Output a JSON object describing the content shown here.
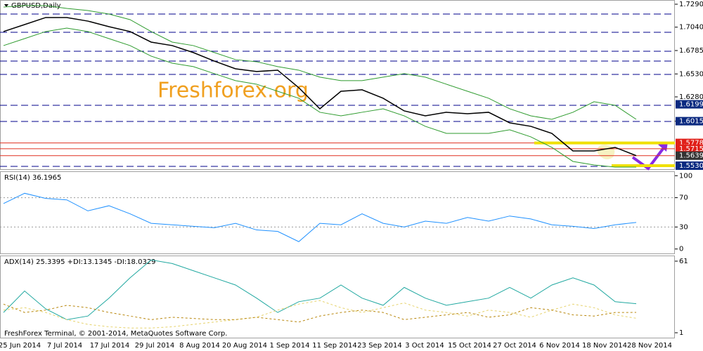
{
  "chart_data": [
    {
      "type": "line",
      "title": "GBPUSD,Daily",
      "watermark": "Freshforex.org",
      "ylim": [
        1.5484,
        1.7336
      ],
      "yticks": [
        {
          "value": 1.729,
          "label": "1.7290"
        },
        {
          "value": 1.704,
          "label": "1.7040"
        },
        {
          "value": 1.6785,
          "label": "1.6785"
        },
        {
          "value": 1.653,
          "label": "1.6530"
        },
        {
          "value": 1.628,
          "label": "1.6280"
        },
        {
          "value": 1.6015,
          "label": "1.6015"
        }
      ],
      "levels": [
        1.7183,
        1.6984,
        1.6777,
        1.667,
        1.6525,
        1.6188,
        1.6012,
        1.5522
      ],
      "level_color": "#00008b",
      "red_levels": [
        1.5778,
        1.5715,
        1.5639
      ],
      "yellow_levels": [
        1.5778,
        1.553
      ],
      "price_tags": [
        {
          "value": 1.6199,
          "label": "1.6199",
          "color": "#0b2a80"
        },
        {
          "value": 1.6015,
          "label": "1.6015",
          "color": "#0b2a80"
        },
        {
          "value": 1.5778,
          "label": "1.5778",
          "color": "#e0201a"
        },
        {
          "value": 1.5715,
          "label": "1.5715",
          "color": "#e0201a"
        },
        {
          "value": 1.5639,
          "label": "1.5639",
          "color": "#333333"
        },
        {
          "value": 1.553,
          "label": "1.5530",
          "color": "#0b2a80"
        }
      ],
      "series": [
        {
          "color": "#000000",
          "values": [
            1.6992,
            1.7068,
            1.7145,
            1.7145,
            1.7106,
            1.7045,
            1.6992,
            1.6877,
            1.6839,
            1.6763,
            1.667,
            1.6586,
            1.6556,
            1.6571,
            1.638,
            1.615,
            1.6341,
            1.6357,
            1.6265,
            1.6127,
            1.6073,
            1.6112,
            1.6096,
            1.6112,
            1.5997,
            1.5959,
            1.5882,
            1.5691,
            1.5691,
            1.5729,
            1.5639
          ]
        },
        {
          "color": "#2e9b2e",
          "values": [
            1.7259,
            1.7275,
            1.7275,
            1.7244,
            1.7221,
            1.7183,
            1.7122,
            1.6992,
            1.6877,
            1.6839,
            1.6763,
            1.6686,
            1.6663,
            1.661,
            1.6571,
            1.6495,
            1.6457,
            1.6457,
            1.6495,
            1.6533,
            1.6495,
            1.6418,
            1.6341,
            1.6265,
            1.615,
            1.6073,
            1.6035,
            1.6112,
            1.6227,
            1.6188,
            1.6035
          ]
        },
        {
          "color": "#2e9b2e",
          "values": [
            1.6839,
            1.6915,
            1.6992,
            1.703,
            1.6992,
            1.6915,
            1.6839,
            1.6724,
            1.6647,
            1.661,
            1.6533,
            1.6457,
            1.6418,
            1.6341,
            1.6265,
            1.6112,
            1.6073,
            1.6112,
            1.615,
            1.6073,
            1.5959,
            1.5882,
            1.5882,
            1.5882,
            1.5921,
            1.5844,
            1.5729,
            1.5576,
            1.5538,
            1.5515,
            1.5515
          ]
        }
      ]
    },
    {
      "type": "line",
      "title": "RSI(14) 36.1965",
      "ylim": [
        -7,
        106
      ],
      "yticks": [
        100,
        70,
        30,
        0
      ],
      "levels": [
        70,
        30
      ],
      "level_color": "#999999",
      "series": [
        {
          "color": "#1e90ff",
          "values": [
            62,
            76,
            69,
            67,
            52,
            59,
            48,
            35,
            33,
            31,
            29,
            35,
            26,
            24,
            10,
            35,
            33,
            48,
            35,
            30,
            38,
            35,
            43,
            38,
            45,
            41,
            33,
            31,
            28,
            33,
            36.1965
          ]
        }
      ]
    },
    {
      "type": "line",
      "title": "ADX(14) 25.3395 +DI:13.1345 -DI:18.0329",
      "ylim": [
        -3.7,
        65.7
      ],
      "yticks": [
        61,
        1
      ],
      "footer": "FreshForex Terminal, © 2001-2014, MetaQuotes Software Corp.",
      "x_labels": [
        "25 Jun 2014",
        "7 Jul 2014",
        "17 Jul 2014",
        "29 Jul 2014",
        "8 Aug 2014",
        "20 Aug 2014",
        "1 Sep 2014",
        "11 Sep 2014",
        "23 Sep 2014",
        "3 Oct 2014",
        "15 Oct 2014",
        "27 Oct 2014",
        "6 Nov 2014",
        "18 Nov 2014",
        "28 Nov 2014"
      ],
      "series": [
        {
          "color": "#20a8a0",
          "values": [
            18,
            36,
            21,
            12,
            15,
            30,
            47,
            62,
            59,
            53,
            47,
            41,
            30,
            18,
            27,
            30,
            41,
            30,
            24,
            39,
            30,
            24,
            27,
            30,
            39,
            30,
            41,
            47,
            41,
            27,
            25.3395
          ]
        },
        {
          "color": "#e6d26a",
          "dash": true,
          "values": [
            20,
            22,
            18,
            12,
            8,
            6,
            5,
            5,
            6,
            8,
            10,
            12,
            14,
            20,
            25,
            28,
            22,
            18,
            22,
            26,
            20,
            18,
            15,
            20,
            18,
            14,
            20,
            25,
            22,
            16,
            13.1345
          ]
        },
        {
          "color": "#b8860b",
          "dash": true,
          "values": [
            25,
            18,
            20,
            24,
            22,
            18,
            15,
            12,
            14,
            13,
            12,
            12,
            14,
            12,
            10,
            15,
            18,
            20,
            18,
            12,
            14,
            16,
            18,
            14,
            16,
            22,
            20,
            16,
            15,
            18,
            18.0329
          ]
        }
      ]
    }
  ]
}
